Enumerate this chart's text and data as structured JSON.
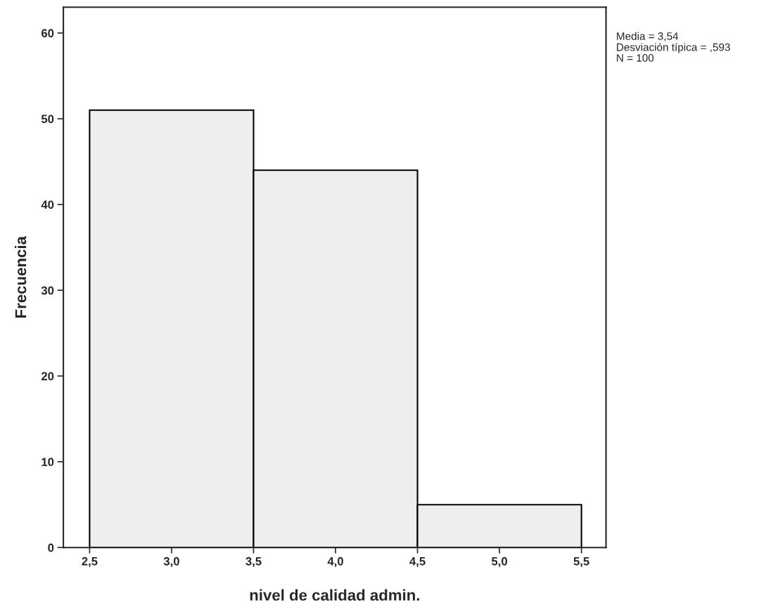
{
  "chart_data": {
    "type": "histogram",
    "xlabel": "nivel de calidad admin.",
    "ylabel": "Frecuencia",
    "bins": [
      2.5,
      3.5,
      4.5,
      5.5
    ],
    "values": [
      51,
      44,
      5
    ],
    "color": "#eeeeee",
    "xlim": [
      2.34,
      5.65
    ],
    "ylim": [
      0,
      63
    ],
    "xticks": [
      {
        "value": 2.5,
        "label": "2,5"
      },
      {
        "value": 3.0,
        "label": "3,0"
      },
      {
        "value": 3.5,
        "label": "3,5"
      },
      {
        "value": 4.0,
        "label": "4,0"
      },
      {
        "value": 4.5,
        "label": "4,5"
      },
      {
        "value": 5.0,
        "label": "5,0"
      },
      {
        "value": 5.5,
        "label": "5,5"
      }
    ],
    "yticks": [
      0,
      10,
      20,
      30,
      40,
      50,
      60
    ],
    "annotations": [
      "Media = 3,54",
      "Desviación típica = ,593",
      "N = 100"
    ],
    "grid": false,
    "legend": false
  }
}
